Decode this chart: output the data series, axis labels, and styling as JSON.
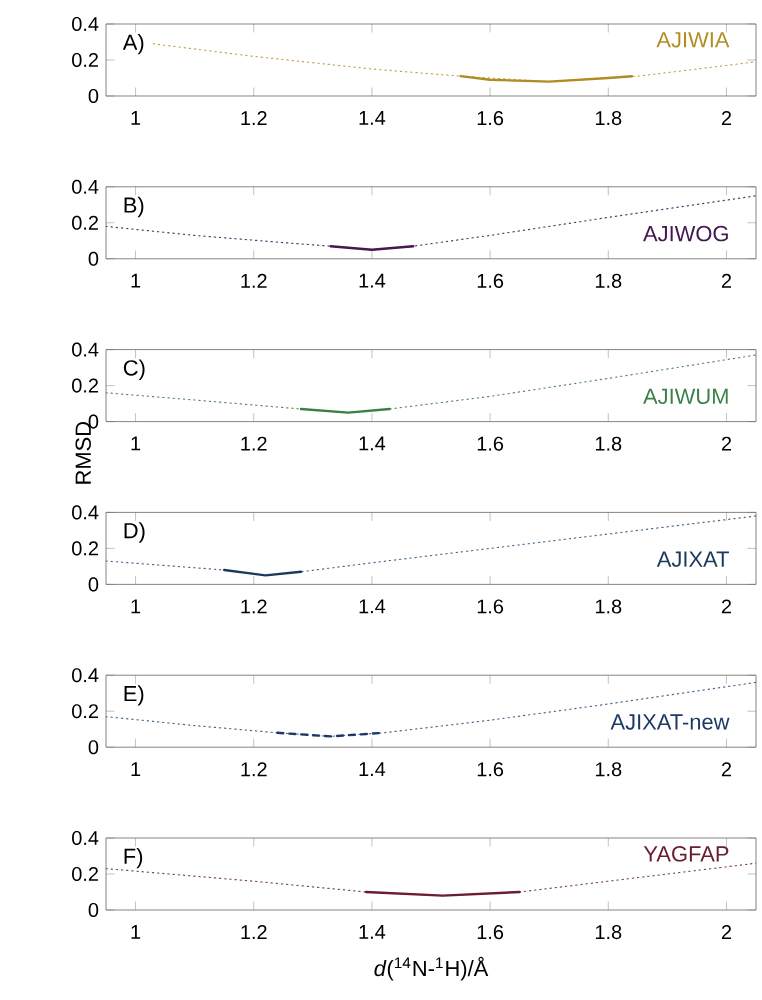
{
  "chart_data": [
    {
      "type": "line",
      "annotations": [
        "A)"
      ],
      "xlim": [
        0.95,
        2.05
      ],
      "ylim": [
        0,
        0.4
      ],
      "xticks": [
        1,
        1.2,
        1.4,
        1.6,
        1.8,
        2
      ],
      "yticks": [
        0,
        0.2,
        0.4
      ],
      "series": [
        {
          "color": "#c4a448",
          "line_style": "dotted",
          "x": [
            1.03,
            1.2,
            1.4,
            1.55,
            1.7,
            1.85,
            2.05
          ],
          "values": [
            0.29,
            0.22,
            0.15,
            0.11,
            0.08,
            0.11,
            0.19
          ]
        },
        {
          "name": "AJIWIA",
          "color": "#b08c24",
          "line_style": "solid",
          "x": [
            1.55,
            1.6,
            1.7,
            1.8,
            1.84
          ],
          "values": [
            0.11,
            0.09,
            0.08,
            0.1,
            0.11
          ]
        }
      ]
    },
    {
      "type": "line",
      "annotations": [
        "B)"
      ],
      "xlim": [
        0.95,
        2.05
      ],
      "ylim": [
        0,
        0.4
      ],
      "xticks": [
        1,
        1.2,
        1.4,
        1.6,
        1.8,
        2
      ],
      "yticks": [
        0,
        0.2,
        0.4
      ],
      "series": [
        {
          "color": "#5a3a6a",
          "line_style": "dotted",
          "x": [
            0.95,
            1.1,
            1.25,
            1.33,
            1.4,
            1.47,
            1.6,
            1.8,
            2.05
          ],
          "values": [
            0.18,
            0.13,
            0.09,
            0.07,
            0.05,
            0.07,
            0.13,
            0.23,
            0.35
          ]
        },
        {
          "name": "AJIWOG",
          "color": "#45184f",
          "line_style": "solid",
          "x": [
            1.33,
            1.4,
            1.47
          ],
          "values": [
            0.07,
            0.05,
            0.07
          ]
        }
      ]
    },
    {
      "type": "line",
      "annotations": [
        "C)"
      ],
      "ylabel": "RMSD",
      "xlim": [
        0.95,
        2.05
      ],
      "ylim": [
        0,
        0.4
      ],
      "xticks": [
        1,
        1.2,
        1.4,
        1.6,
        1.8,
        2
      ],
      "yticks": [
        0,
        0.2,
        0.4
      ],
      "series": [
        {
          "color": "#5a8a62",
          "line_style": "dotted",
          "x": [
            0.95,
            1.1,
            1.28,
            1.36,
            1.43,
            1.6,
            1.8,
            2.05
          ],
          "values": [
            0.16,
            0.12,
            0.07,
            0.05,
            0.07,
            0.14,
            0.24,
            0.37
          ]
        },
        {
          "name": "AJIWUM",
          "color": "#3a8048",
          "line_style": "solid",
          "x": [
            1.28,
            1.36,
            1.43
          ],
          "values": [
            0.07,
            0.05,
            0.07
          ]
        }
      ]
    },
    {
      "type": "line",
      "annotations": [
        "D)"
      ],
      "xlim": [
        0.95,
        2.05
      ],
      "ylim": [
        0,
        0.4
      ],
      "xticks": [
        1,
        1.2,
        1.4,
        1.6,
        1.8,
        2
      ],
      "yticks": [
        0,
        0.2,
        0.4
      ],
      "series": [
        {
          "color": "#4a6a8a",
          "line_style": "dotted",
          "x": [
            0.95,
            1.15,
            1.22,
            1.28,
            1.4,
            1.6,
            1.8,
            2.05
          ],
          "values": [
            0.13,
            0.08,
            0.05,
            0.07,
            0.12,
            0.2,
            0.28,
            0.38
          ]
        },
        {
          "name": "AJIXAT",
          "color": "#1c3a5c",
          "line_style": "solid",
          "x": [
            1.15,
            1.22,
            1.28
          ],
          "values": [
            0.08,
            0.05,
            0.07
          ]
        }
      ]
    },
    {
      "type": "line",
      "annotations": [
        "E)"
      ],
      "xlim": [
        0.95,
        2.05
      ],
      "ylim": [
        0,
        0.4
      ],
      "xticks": [
        1,
        1.2,
        1.4,
        1.6,
        1.8,
        2
      ],
      "yticks": [
        0,
        0.2,
        0.4
      ],
      "series": [
        {
          "color": "#4a6a8a",
          "line_style": "dotted",
          "x": [
            0.95,
            1.1,
            1.24,
            1.33,
            1.42,
            1.6,
            1.8,
            2.05
          ],
          "values": [
            0.17,
            0.12,
            0.08,
            0.06,
            0.08,
            0.15,
            0.24,
            0.36
          ]
        },
        {
          "name": "AJIXAT-new",
          "color": "#1c3a64",
          "line_style": "dashed",
          "x": [
            1.24,
            1.33,
            1.42
          ],
          "values": [
            0.08,
            0.06,
            0.08
          ]
        }
      ]
    },
    {
      "type": "line",
      "annotations": [
        "F)"
      ],
      "xlabel": "*d*($^{14}$N-$^{1}$H)/Å",
      "xlim": [
        0.95,
        2.05
      ],
      "ylim": [
        0,
        0.4
      ],
      "xticks": [
        1,
        1.2,
        1.4,
        1.6,
        1.8,
        2
      ],
      "yticks": [
        0,
        0.2,
        0.4
      ],
      "series": [
        {
          "color": "#7a4a55",
          "line_style": "dotted",
          "x": [
            0.95,
            1.2,
            1.39,
            1.52,
            1.65,
            1.8,
            2.05
          ],
          "values": [
            0.23,
            0.16,
            0.1,
            0.08,
            0.1,
            0.16,
            0.26
          ]
        },
        {
          "name": "YAGFAP",
          "color": "#6a1e30",
          "line_style": "solid",
          "x": [
            1.39,
            1.52,
            1.65
          ],
          "values": [
            0.1,
            0.08,
            0.1
          ]
        }
      ]
    }
  ]
}
